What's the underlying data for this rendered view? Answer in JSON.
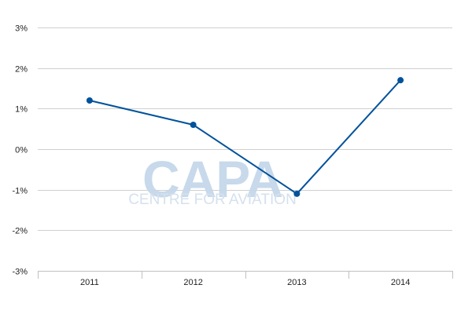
{
  "chart_data": {
    "type": "line",
    "categories": [
      "2011",
      "2012",
      "2013",
      "2014"
    ],
    "series": [
      {
        "values": [
          1.2,
          0.6,
          -1.1,
          1.7
        ]
      }
    ],
    "yticks": [
      "3%",
      "2%",
      "1%",
      "0%",
      "-1%",
      "-2%",
      "-3%"
    ],
    "ylim": [
      -3,
      3
    ],
    "grid": true,
    "line_color": "#00529b",
    "watermark": {
      "brand": "CAPA",
      "tagline": "CENTRE FOR AVIATION"
    }
  }
}
